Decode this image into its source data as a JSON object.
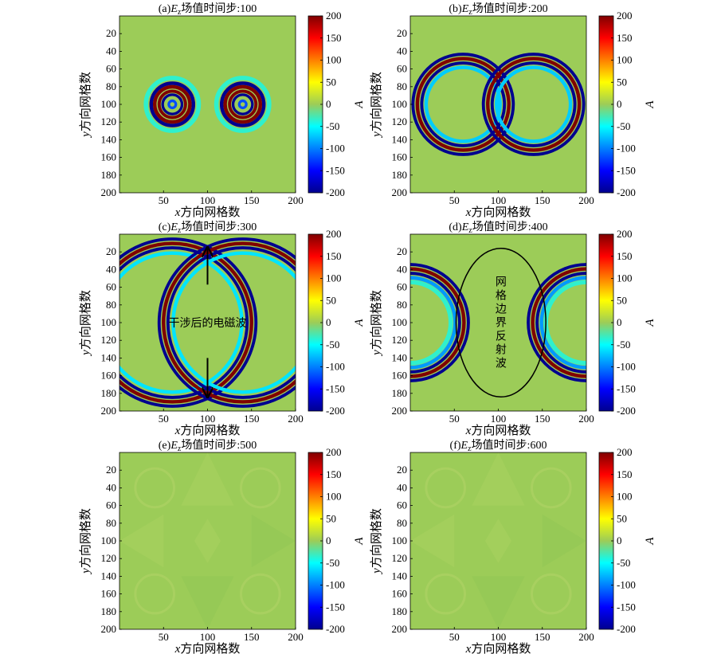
{
  "figure": {
    "xlabel_var": "x",
    "xlabel_text": "方向网格数",
    "ylabel_var": "y",
    "ylabel_text": "方向网格数",
    "colorbar_label": "A",
    "colormap": "jet",
    "background_value_color": "#9ccc58"
  },
  "chart_data": [
    {
      "type": "heatmap",
      "id": "a",
      "title_prefix": "(a)",
      "title_var": "E",
      "title_sub": "z",
      "title_suffix": "场值时间步:100",
      "xlim": [
        0,
        200
      ],
      "ylim": [
        200,
        0
      ],
      "clim": [
        -200,
        200
      ],
      "xticks": [
        "50",
        "100",
        "150",
        "200"
      ],
      "yticks": [
        "20",
        "40",
        "60",
        "80",
        "100",
        "120",
        "140",
        "160",
        "180",
        "200"
      ],
      "cbar_ticks": [
        "200",
        "150",
        "100",
        "50",
        "0",
        "-50",
        "-100",
        "-150",
        "-200"
      ],
      "sources": [
        [
          60,
          100
        ],
        [
          140,
          100
        ]
      ],
      "rings": [
        {
          "r": 24,
          "w": 4,
          "v": -200
        },
        {
          "r": 20,
          "w": 4,
          "v": 200
        },
        {
          "r": 15,
          "w": 3.5,
          "v": 200
        },
        {
          "r": 11,
          "w": 3,
          "v": -200
        },
        {
          "r": 4,
          "w": 3,
          "v": -120
        },
        {
          "r": 30,
          "w": 5,
          "v": -35
        }
      ],
      "annotation": "",
      "ellipse": null,
      "arrows": []
    },
    {
      "type": "heatmap",
      "id": "b",
      "title_prefix": "(b)",
      "title_var": "E",
      "title_sub": "z",
      "title_suffix": "场值时间步:200",
      "xlim": [
        0,
        200
      ],
      "ylim": [
        200,
        0
      ],
      "clim": [
        -200,
        200
      ],
      "xticks": [
        "50",
        "100",
        "150",
        "200"
      ],
      "yticks": [
        "20",
        "40",
        "60",
        "80",
        "100",
        "120",
        "140",
        "160",
        "180",
        "200"
      ],
      "cbar_ticks": [
        "200",
        "150",
        "100",
        "50",
        "0",
        "-50",
        "-100",
        "-150",
        "-200"
      ],
      "sources": [
        [
          60,
          100
        ],
        [
          140,
          100
        ]
      ],
      "rings": [
        {
          "r": 57,
          "w": 3.5,
          "v": -200
        },
        {
          "r": 52,
          "w": 4,
          "v": 200
        },
        {
          "r": 47,
          "w": 3.5,
          "v": -200
        },
        {
          "r": 42,
          "w": 4,
          "v": -70
        }
      ],
      "annotation": "",
      "ellipse": null,
      "arrows": []
    },
    {
      "type": "heatmap",
      "id": "c",
      "title_prefix": "(c)",
      "title_var": "E",
      "title_sub": "z",
      "title_suffix": "场值时间步:300",
      "xlim": [
        0,
        200
      ],
      "ylim": [
        200,
        0
      ],
      "clim": [
        -200,
        200
      ],
      "xticks": [
        "50",
        "100",
        "150",
        "200"
      ],
      "yticks": [
        "20",
        "40",
        "60",
        "80",
        "100",
        "120",
        "140",
        "160",
        "180",
        "200"
      ],
      "cbar_ticks": [
        "200",
        "150",
        "100",
        "50",
        "0",
        "-50",
        "-100",
        "-150",
        "-200"
      ],
      "sources": [
        [
          60,
          100
        ],
        [
          140,
          100
        ]
      ],
      "rings": [
        {
          "r": 95,
          "w": 3.5,
          "v": -200
        },
        {
          "r": 90,
          "w": 4,
          "v": 200
        },
        {
          "r": 85,
          "w": 3.5,
          "v": -200
        },
        {
          "r": 79,
          "w": 4,
          "v": -60
        }
      ],
      "annotation": "干涉后的电磁波",
      "ellipse": null,
      "arrows": [
        {
          "from": [
            100,
            57
          ],
          "to": [
            100,
            16
          ]
        },
        {
          "from": [
            100,
            140
          ],
          "to": [
            100,
            183
          ]
        }
      ]
    },
    {
      "type": "heatmap",
      "id": "d",
      "title_prefix": "(d)",
      "title_var": "E",
      "title_sub": "z",
      "title_suffix": "场值时间步:400",
      "xlim": [
        0,
        200
      ],
      "ylim": [
        200,
        0
      ],
      "clim": [
        -200,
        200
      ],
      "xticks": [
        "50",
        "100",
        "150",
        "200"
      ],
      "yticks": [
        "20",
        "40",
        "60",
        "80",
        "100",
        "120",
        "140",
        "160",
        "180",
        "200"
      ],
      "cbar_ticks": [
        "200",
        "150",
        "100",
        "50",
        "0",
        "-50",
        "-100",
        "-150",
        "-200"
      ],
      "sources": [
        [
          0,
          100
        ],
        [
          200,
          100
        ]
      ],
      "rings": [
        {
          "r": 66,
          "w": 3.5,
          "v": -200
        },
        {
          "r": 61,
          "w": 4,
          "v": 200
        },
        {
          "r": 56,
          "w": 3.5,
          "v": -200
        },
        {
          "r": 51,
          "w": 4,
          "v": -90
        },
        {
          "r": 46,
          "w": 5,
          "v": -35
        }
      ],
      "annotation": "网格边界反射波",
      "ellipse": {
        "cx": 103,
        "cy": 100,
        "rx": 51,
        "ry": 84
      },
      "arrows": []
    },
    {
      "type": "heatmap",
      "id": "e",
      "title_prefix": "(e)",
      "title_var": "E",
      "title_sub": "z",
      "title_suffix": "场值时间步:500",
      "xlim": [
        0,
        200
      ],
      "ylim": [
        200,
        0
      ],
      "clim": [
        -200,
        200
      ],
      "xticks": [
        "50",
        "100",
        "150",
        "200"
      ],
      "yticks": [
        "20",
        "40",
        "60",
        "80",
        "100",
        "120",
        "140",
        "160",
        "180",
        "200"
      ],
      "cbar_ticks": [
        "200",
        "150",
        "100",
        "50",
        "0",
        "-50",
        "-100",
        "-150",
        "-200"
      ],
      "sources": [],
      "rings": [],
      "faint": true,
      "annotation": "",
      "ellipse": null,
      "arrows": []
    },
    {
      "type": "heatmap",
      "id": "f",
      "title_prefix": "(f)",
      "title_var": "E",
      "title_sub": "z",
      "title_suffix": "场值时间步:600",
      "xlim": [
        0,
        200
      ],
      "ylim": [
        200,
        0
      ],
      "clim": [
        -200,
        200
      ],
      "xticks": [
        "50",
        "100",
        "150",
        "200"
      ],
      "yticks": [
        "20",
        "40",
        "60",
        "80",
        "100",
        "120",
        "140",
        "160",
        "180",
        "200"
      ],
      "cbar_ticks": [
        "200",
        "150",
        "100",
        "50",
        "0",
        "-50",
        "-100",
        "-150",
        "-200"
      ],
      "sources": [],
      "rings": [],
      "faint": true,
      "annotation": "",
      "ellipse": null,
      "arrows": []
    }
  ]
}
